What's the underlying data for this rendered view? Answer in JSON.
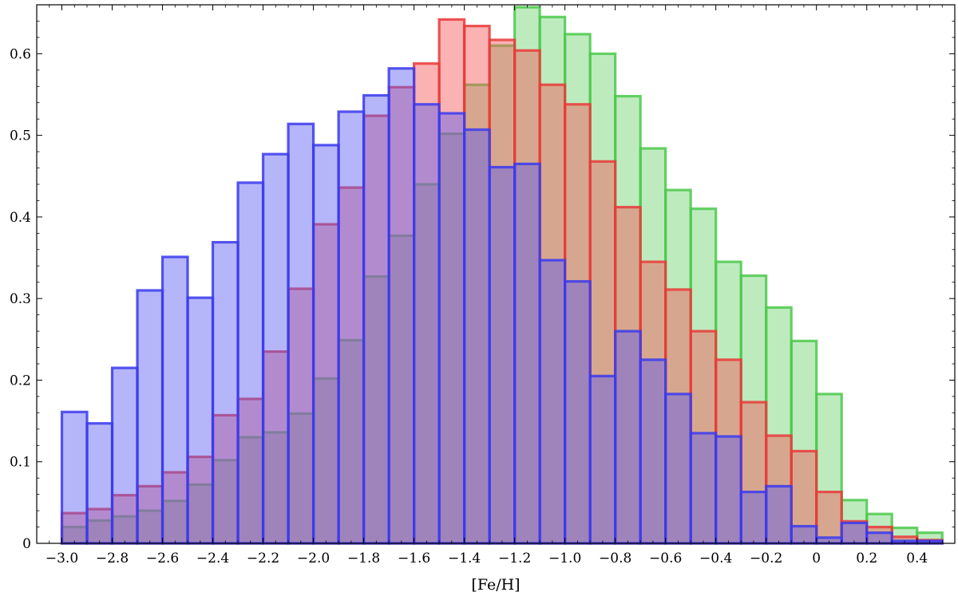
{
  "chart_data": {
    "type": "bar",
    "subtype": "overlapping-histogram",
    "title": "",
    "xlabel": "[Fe/H]",
    "ylabel": "",
    "xlim": [
      -3.1,
      0.55
    ],
    "ylim": [
      0,
      0.66
    ],
    "bin_edges": [
      -3.0,
      -2.9,
      -2.8,
      -2.7,
      -2.6,
      -2.5,
      -2.4,
      -2.3,
      -2.2,
      -2.1,
      -2.0,
      -1.9,
      -1.8,
      -1.7,
      -1.6,
      -1.5,
      -1.4,
      -1.3,
      -1.2,
      -1.1,
      -1.0,
      -0.9,
      -0.8,
      -0.7,
      -0.6,
      -0.5,
      -0.4,
      -0.3,
      -0.2,
      -0.1,
      0.0,
      0.1,
      0.2,
      0.3,
      0.4,
      0.5
    ],
    "x_ticks": [
      -3.0,
      -2.8,
      -2.6,
      -2.4,
      -2.2,
      -2.0,
      -1.8,
      -1.6,
      -1.4,
      -1.2,
      -1.0,
      -0.8,
      -0.6,
      -0.4,
      -0.2,
      0,
      0.2,
      0.4
    ],
    "x_tick_labels": [
      "−3.0",
      "−2.8",
      "−2.6",
      "−2.4",
      "−2.2",
      "−2.0",
      "−1.8",
      "−1.6",
      "−1.4",
      "−1.2",
      "−1.0",
      "−0.8",
      "−0.6",
      "−0.4",
      "−0.2",
      "0",
      "0.2",
      "0.4"
    ],
    "y_ticks": [
      0,
      0.1,
      0.2,
      0.3,
      0.4,
      0.5,
      0.6
    ],
    "y_tick_labels": [
      "0",
      "0.1",
      "0.2",
      "0.3",
      "0.4",
      "0.5",
      "0.6"
    ],
    "grid": false,
    "legend": "none",
    "series": [
      {
        "fill": "#6ed26e",
        "edge": "#4cc94c",
        "values": [
          0.02,
          0.028,
          0.033,
          0.04,
          0.052,
          0.072,
          0.102,
          0.13,
          0.136,
          0.159,
          0.202,
          0.249,
          0.327,
          0.377,
          0.44,
          0.502,
          0.562,
          0.61,
          0.657,
          0.645,
          0.624,
          0.6,
          0.548,
          0.484,
          0.433,
          0.41,
          0.345,
          0.328,
          0.289,
          0.248,
          0.183,
          0.053,
          0.036,
          0.019,
          0.013
        ]
      },
      {
        "fill": "#f55555",
        "edge": "#e93a3a",
        "values": [
          0.037,
          0.042,
          0.059,
          0.07,
          0.087,
          0.106,
          0.157,
          0.177,
          0.235,
          0.312,
          0.391,
          0.436,
          0.524,
          0.559,
          0.588,
          0.642,
          0.634,
          0.617,
          0.604,
          0.562,
          0.538,
          0.468,
          0.412,
          0.345,
          0.311,
          0.26,
          0.225,
          0.173,
          0.132,
          0.113,
          0.063,
          0.027,
          0.02,
          0.008,
          0.004
        ]
      },
      {
        "fill": "#5a5af2",
        "edge": "#3a3aee",
        "values": [
          0.161,
          0.147,
          0.215,
          0.31,
          0.351,
          0.301,
          0.369,
          0.442,
          0.477,
          0.514,
          0.488,
          0.529,
          0.549,
          0.582,
          0.538,
          0.527,
          0.507,
          0.461,
          0.465,
          0.347,
          0.321,
          0.205,
          0.26,
          0.225,
          0.183,
          0.135,
          0.131,
          0.063,
          0.07,
          0.021,
          0.007,
          0.025,
          0.013,
          0.003,
          0.003
        ]
      }
    ]
  }
}
